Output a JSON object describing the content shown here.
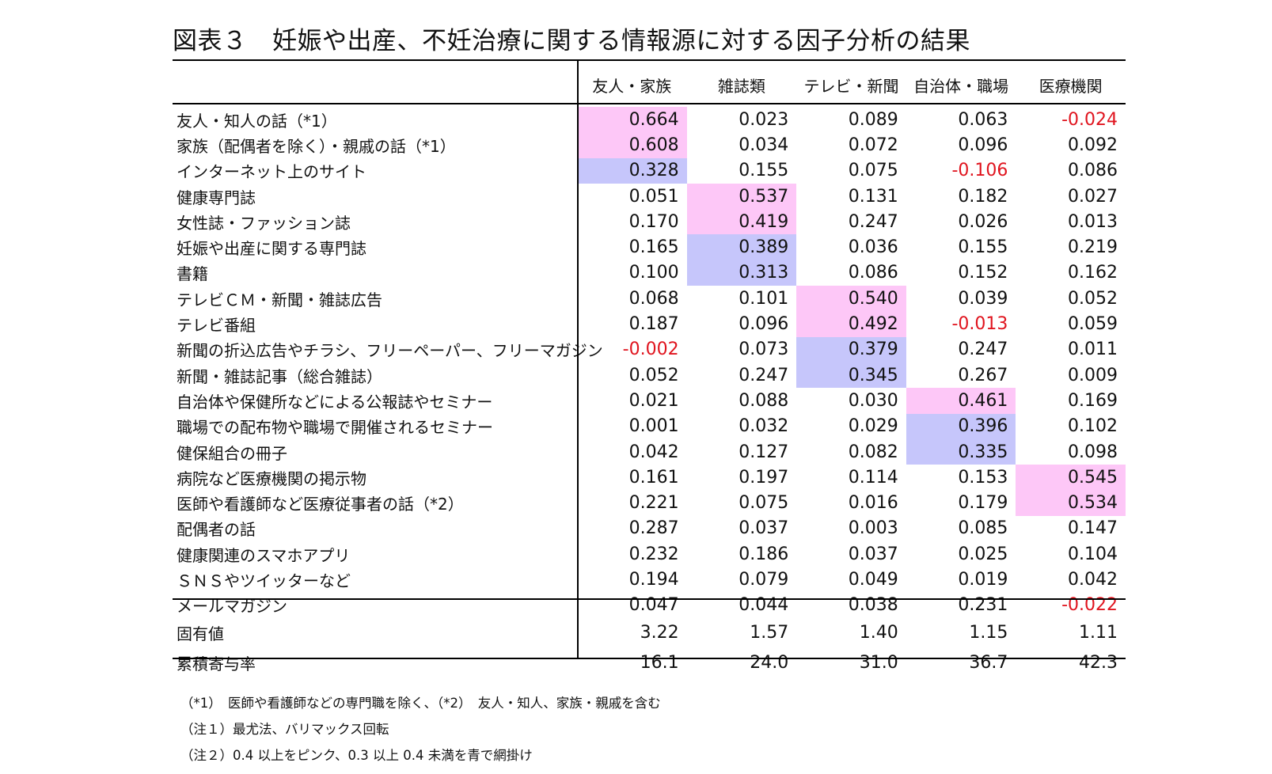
{
  "title": "図表３　妊娠や出産、不妊治療に関する情報源に対する因子分析の結果",
  "columns": [
    "友人・家族",
    "雑誌類",
    "テレビ・新聞",
    "自治体・職場",
    "医療機関"
  ],
  "rows": [
    {
      "label": "友人・知人の話（*1）",
      "values": [
        "0.664",
        "0.023",
        "0.089",
        "0.063",
        "-0.024"
      ],
      "hl": [
        "pink",
        "",
        "",
        "",
        ""
      ]
    },
    {
      "label": "家族（配偶者を除く）・親戚の話（*1）",
      "values": [
        "0.608",
        "0.034",
        "0.072",
        "0.096",
        "0.092"
      ],
      "hl": [
        "pink",
        "",
        "",
        "",
        ""
      ]
    },
    {
      "label": "インターネット上のサイト",
      "values": [
        "0.328",
        "0.155",
        "0.075",
        "-0.106",
        "0.086"
      ],
      "hl": [
        "blue",
        "",
        "",
        "",
        ""
      ]
    },
    {
      "label": "健康専門誌",
      "values": [
        "0.051",
        "0.537",
        "0.131",
        "0.182",
        "0.027"
      ],
      "hl": [
        "",
        "pink",
        "",
        "",
        ""
      ]
    },
    {
      "label": "女性誌・ファッション誌",
      "values": [
        "0.170",
        "0.419",
        "0.247",
        "0.026",
        "0.013"
      ],
      "hl": [
        "",
        "pink",
        "",
        "",
        ""
      ]
    },
    {
      "label": "妊娠や出産に関する専門誌",
      "values": [
        "0.165",
        "0.389",
        "0.036",
        "0.155",
        "0.219"
      ],
      "hl": [
        "",
        "blue",
        "",
        "",
        ""
      ]
    },
    {
      "label": "書籍",
      "values": [
        "0.100",
        "0.313",
        "0.086",
        "0.152",
        "0.162"
      ],
      "hl": [
        "",
        "blue",
        "",
        "",
        ""
      ]
    },
    {
      "label": "テレビＣＭ・新聞・雑誌広告",
      "values": [
        "0.068",
        "0.101",
        "0.540",
        "0.039",
        "0.052"
      ],
      "hl": [
        "",
        "",
        "pink",
        "",
        ""
      ]
    },
    {
      "label": "テレビ番組",
      "values": [
        "0.187",
        "0.096",
        "0.492",
        "-0.013",
        "0.059"
      ],
      "hl": [
        "",
        "",
        "pink",
        "",
        ""
      ]
    },
    {
      "label": "新聞の折込広告やチラシ、フリーペーパー、フリーマガジン",
      "values": [
        "-0.002",
        "0.073",
        "0.379",
        "0.247",
        "0.011"
      ],
      "hl": [
        "",
        "",
        "blue",
        "",
        ""
      ]
    },
    {
      "label": "新聞・雑誌記事（総合雑誌）",
      "values": [
        "0.052",
        "0.247",
        "0.345",
        "0.267",
        "0.009"
      ],
      "hl": [
        "",
        "",
        "blue",
        "",
        ""
      ]
    },
    {
      "label": "自治体や保健所などによる公報誌やセミナー",
      "values": [
        "0.021",
        "0.088",
        "0.030",
        "0.461",
        "0.169"
      ],
      "hl": [
        "",
        "",
        "",
        "pink",
        ""
      ]
    },
    {
      "label": "職場での配布物や職場で開催されるセミナー",
      "values": [
        "0.001",
        "0.032",
        "0.029",
        "0.396",
        "0.102"
      ],
      "hl": [
        "",
        "",
        "",
        "blue",
        ""
      ]
    },
    {
      "label": "健保組合の冊子",
      "values": [
        "0.042",
        "0.127",
        "0.082",
        "0.335",
        "0.098"
      ],
      "hl": [
        "",
        "",
        "",
        "blue",
        ""
      ]
    },
    {
      "label": "病院など医療機関の掲示物",
      "values": [
        "0.161",
        "0.197",
        "0.114",
        "0.153",
        "0.545"
      ],
      "hl": [
        "",
        "",
        "",
        "",
        "pink"
      ]
    },
    {
      "label": "医師や看護師など医療従事者の話（*2）",
      "values": [
        "0.221",
        "0.075",
        "0.016",
        "0.179",
        "0.534"
      ],
      "hl": [
        "",
        "",
        "",
        "",
        "pink"
      ]
    },
    {
      "label": "配偶者の話",
      "values": [
        "0.287",
        "0.037",
        "0.003",
        "0.085",
        "0.147"
      ],
      "hl": [
        "",
        "",
        "",
        "",
        ""
      ]
    },
    {
      "label": "健康関連のスマホアプリ",
      "values": [
        "0.232",
        "0.186",
        "0.037",
        "0.025",
        "0.104"
      ],
      "hl": [
        "",
        "",
        "",
        "",
        ""
      ]
    },
    {
      "label": "ＳＮＳやツイッターなど",
      "values": [
        "0.194",
        "0.079",
        "0.049",
        "0.019",
        "0.042"
      ],
      "hl": [
        "",
        "",
        "",
        "",
        ""
      ]
    },
    {
      "label": "メールマガジン",
      "values": [
        "0.047",
        "0.044",
        "0.038",
        "0.231",
        "-0.022"
      ],
      "hl": [
        "",
        "",
        "",
        "",
        ""
      ]
    }
  ],
  "summary": [
    {
      "label": "固有値",
      "values": [
        "3.22",
        "1.57",
        "1.40",
        "1.15",
        "1.11"
      ]
    },
    {
      "label": "累積寄与率",
      "values": [
        "16.1",
        "24.0",
        "31.0",
        "36.7",
        "42.3"
      ]
    }
  ],
  "notes": [
    "（*1）　医師や看護師などの専門職を除く、（*2）　友人・知人、家族・親戚を含む",
    "（注１）最尤法、バリマックス回転",
    "（注２）0.4 以上をピンク、0.3 以上 0.4 未満を青で網掛け"
  ],
  "colors": {
    "pink": "#fdc7f7",
    "blue": "#c6c6fb",
    "negative": "#e0141e"
  }
}
